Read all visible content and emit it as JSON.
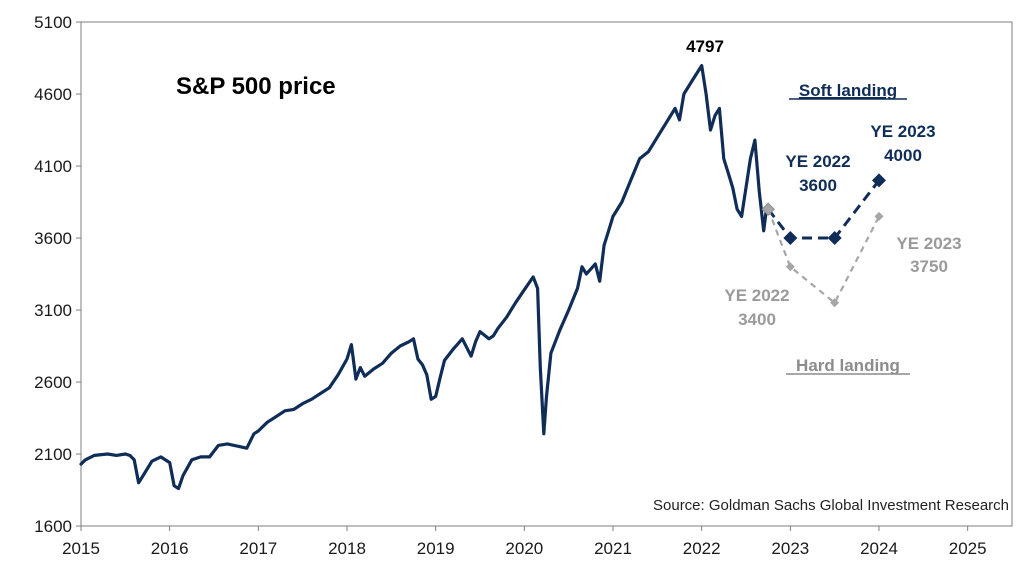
{
  "chart_data": {
    "type": "line",
    "title": "S&P 500 price",
    "source": "Source: Goldman Sachs Global Investment Research",
    "xlim": [
      2015,
      2025.5
    ],
    "ylim": [
      1600,
      5100
    ],
    "xticks": [
      "2015",
      "2016",
      "2017",
      "2018",
      "2019",
      "2020",
      "2021",
      "2022",
      "2023",
      "2024",
      "2025"
    ],
    "yticks": [
      "1600",
      "2100",
      "2600",
      "3100",
      "3600",
      "4100",
      "4600",
      "5100"
    ],
    "colors": {
      "history": "#0f2d57",
      "soft": "#0f2d57",
      "hard": "#a6a6a6",
      "start_marker": "#a6a6a6"
    },
    "series": [
      {
        "key": "history",
        "x": [
          2015.0,
          2015.05,
          2015.15,
          2015.3,
          2015.4,
          2015.5,
          2015.55,
          2015.6,
          2015.65,
          2015.7,
          2015.8,
          2015.9,
          2016.0,
          2016.05,
          2016.1,
          2016.15,
          2016.25,
          2016.35,
          2016.45,
          2016.5,
          2016.55,
          2016.65,
          2016.8,
          2016.87,
          2016.95,
          2017.0,
          2017.1,
          2017.2,
          2017.3,
          2017.4,
          2017.5,
          2017.6,
          2017.7,
          2017.8,
          2017.9,
          2018.0,
          2018.05,
          2018.1,
          2018.15,
          2018.2,
          2018.3,
          2018.4,
          2018.5,
          2018.6,
          2018.7,
          2018.75,
          2018.8,
          2018.85,
          2018.9,
          2018.95,
          2019.0,
          2019.05,
          2019.1,
          2019.2,
          2019.3,
          2019.4,
          2019.45,
          2019.5,
          2019.6,
          2019.65,
          2019.7,
          2019.8,
          2019.9,
          2020.0,
          2020.1,
          2020.15,
          2020.18,
          2020.22,
          2020.25,
          2020.3,
          2020.4,
          2020.5,
          2020.6,
          2020.65,
          2020.7,
          2020.8,
          2020.85,
          2020.9,
          2020.95,
          2021.0,
          2021.1,
          2021.2,
          2021.3,
          2021.4,
          2021.5,
          2021.6,
          2021.7,
          2021.75,
          2021.8,
          2021.9,
          2022.0,
          2022.05,
          2022.1,
          2022.15,
          2022.2,
          2022.25,
          2022.3,
          2022.35,
          2022.4,
          2022.45,
          2022.5,
          2022.55,
          2022.6,
          2022.65,
          2022.7,
          2022.73
        ],
        "y": [
          2030,
          2060,
          2090,
          2100,
          2090,
          2100,
          2090,
          2060,
          1900,
          1950,
          2050,
          2080,
          2040,
          1880,
          1860,
          1950,
          2060,
          2080,
          2080,
          2120,
          2160,
          2170,
          2150,
          2140,
          2240,
          2260,
          2320,
          2360,
          2400,
          2410,
          2450,
          2480,
          2520,
          2560,
          2650,
          2760,
          2860,
          2620,
          2700,
          2640,
          2690,
          2730,
          2800,
          2850,
          2880,
          2900,
          2760,
          2720,
          2650,
          2480,
          2500,
          2630,
          2750,
          2830,
          2900,
          2780,
          2880,
          2950,
          2900,
          2920,
          2970,
          3050,
          3150,
          3240,
          3330,
          3250,
          2700,
          2240,
          2500,
          2800,
          2960,
          3100,
          3250,
          3400,
          3350,
          3420,
          3300,
          3550,
          3650,
          3750,
          3850,
          4000,
          4150,
          4200,
          4300,
          4400,
          4500,
          4420,
          4600,
          4700,
          4797,
          4600,
          4350,
          4450,
          4500,
          4150,
          4050,
          3950,
          3800,
          3750,
          3950,
          4150,
          4280,
          3920,
          3650,
          3800
        ]
      },
      {
        "key": "soft",
        "name": "Soft landing",
        "x": [
          2022.75,
          2023.0,
          2023.5,
          2024.0
        ],
        "y": [
          3800,
          3600,
          3600,
          4000
        ]
      },
      {
        "key": "hard",
        "name": "Hard landing",
        "x": [
          2022.75,
          2023.0,
          2023.5,
          2024.0
        ],
        "y": [
          3800,
          3400,
          3150,
          3750
        ]
      }
    ],
    "annotations": {
      "peak": {
        "label": "4797",
        "x": 2022.0,
        "y": 4797
      },
      "soft_label": "Soft landing",
      "hard_label": "Hard landing",
      "soft_ye2022": [
        "YE 2022",
        "3600"
      ],
      "soft_ye2023": [
        "YE 2023",
        "4000"
      ],
      "hard_ye2022": [
        "YE 2022",
        "3400"
      ],
      "hard_ye2023": [
        "YE 2023",
        "3750"
      ]
    }
  }
}
